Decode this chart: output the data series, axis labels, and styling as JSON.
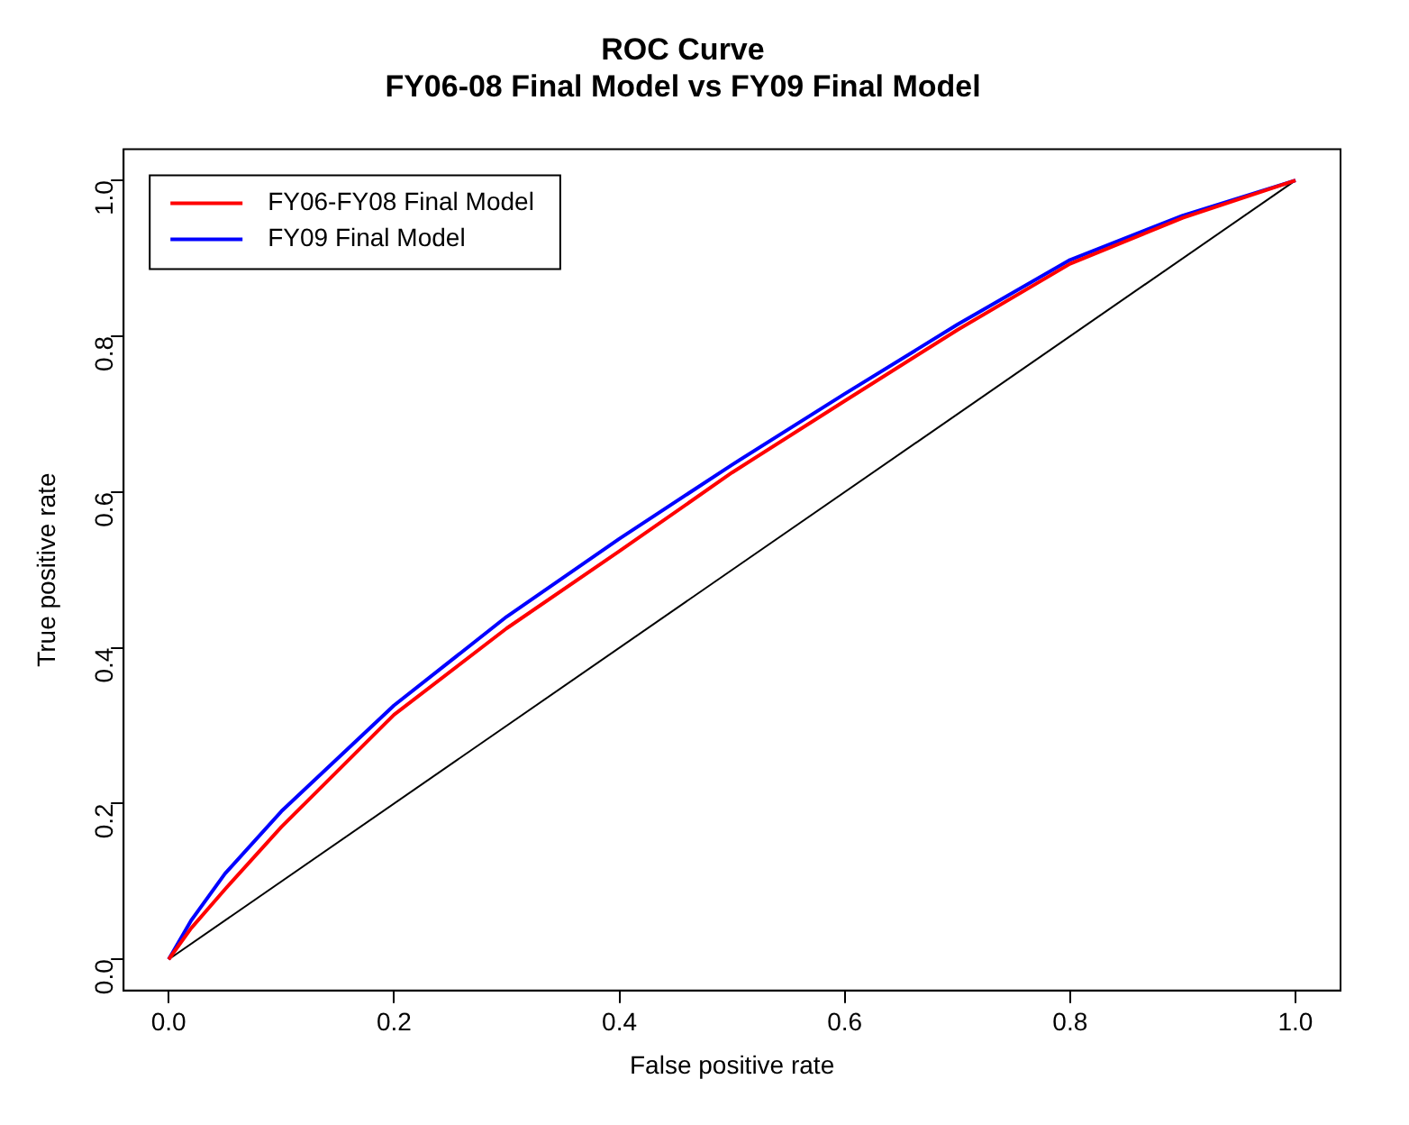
{
  "chart_data": {
    "type": "line",
    "title": "ROC Curve",
    "subtitle": "FY06-08 Final Model vs FY09 Final Model",
    "xlabel": "False positive rate",
    "ylabel": "True positive rate",
    "x": [
      0,
      0.02,
      0.05,
      0.1,
      0.2,
      0.3,
      0.4,
      0.5,
      0.6,
      0.7,
      0.8,
      0.9,
      1
    ],
    "series": [
      {
        "name": "FY06-FY08 Final Model",
        "color": "#ff0000",
        "values": [
          0,
          0.04,
          0.09,
          0.17,
          0.314,
          0.425,
          0.524,
          0.625,
          0.717,
          0.808,
          0.893,
          0.952,
          1
        ]
      },
      {
        "name": "FY09 Final Model",
        "color": "#0000ff",
        "values": [
          0,
          0.05,
          0.11,
          0.19,
          0.326,
          0.44,
          0.54,
          0.635,
          0.726,
          0.815,
          0.898,
          0.955,
          1
        ]
      },
      {
        "color": "#000000",
        "x": [
          0,
          1
        ],
        "values": [
          0,
          1
        ]
      }
    ],
    "xlim": [
      -0.04,
      1.04
    ],
    "ylim": [
      -0.04,
      1.04
    ],
    "xticks": [
      {
        "value": 0,
        "label": "0.0"
      },
      0.2,
      0.4,
      0.6,
      0.8,
      {
        "value": 1,
        "label": "1.0"
      }
    ],
    "yticks": [
      {
        "value": 0,
        "label": "0.0"
      },
      0.2,
      0.4,
      0.6,
      0.8,
      {
        "value": 1,
        "label": "1.0"
      }
    ],
    "grid": false,
    "legend": "top left",
    "marker": "none",
    "line_style": "solid"
  }
}
